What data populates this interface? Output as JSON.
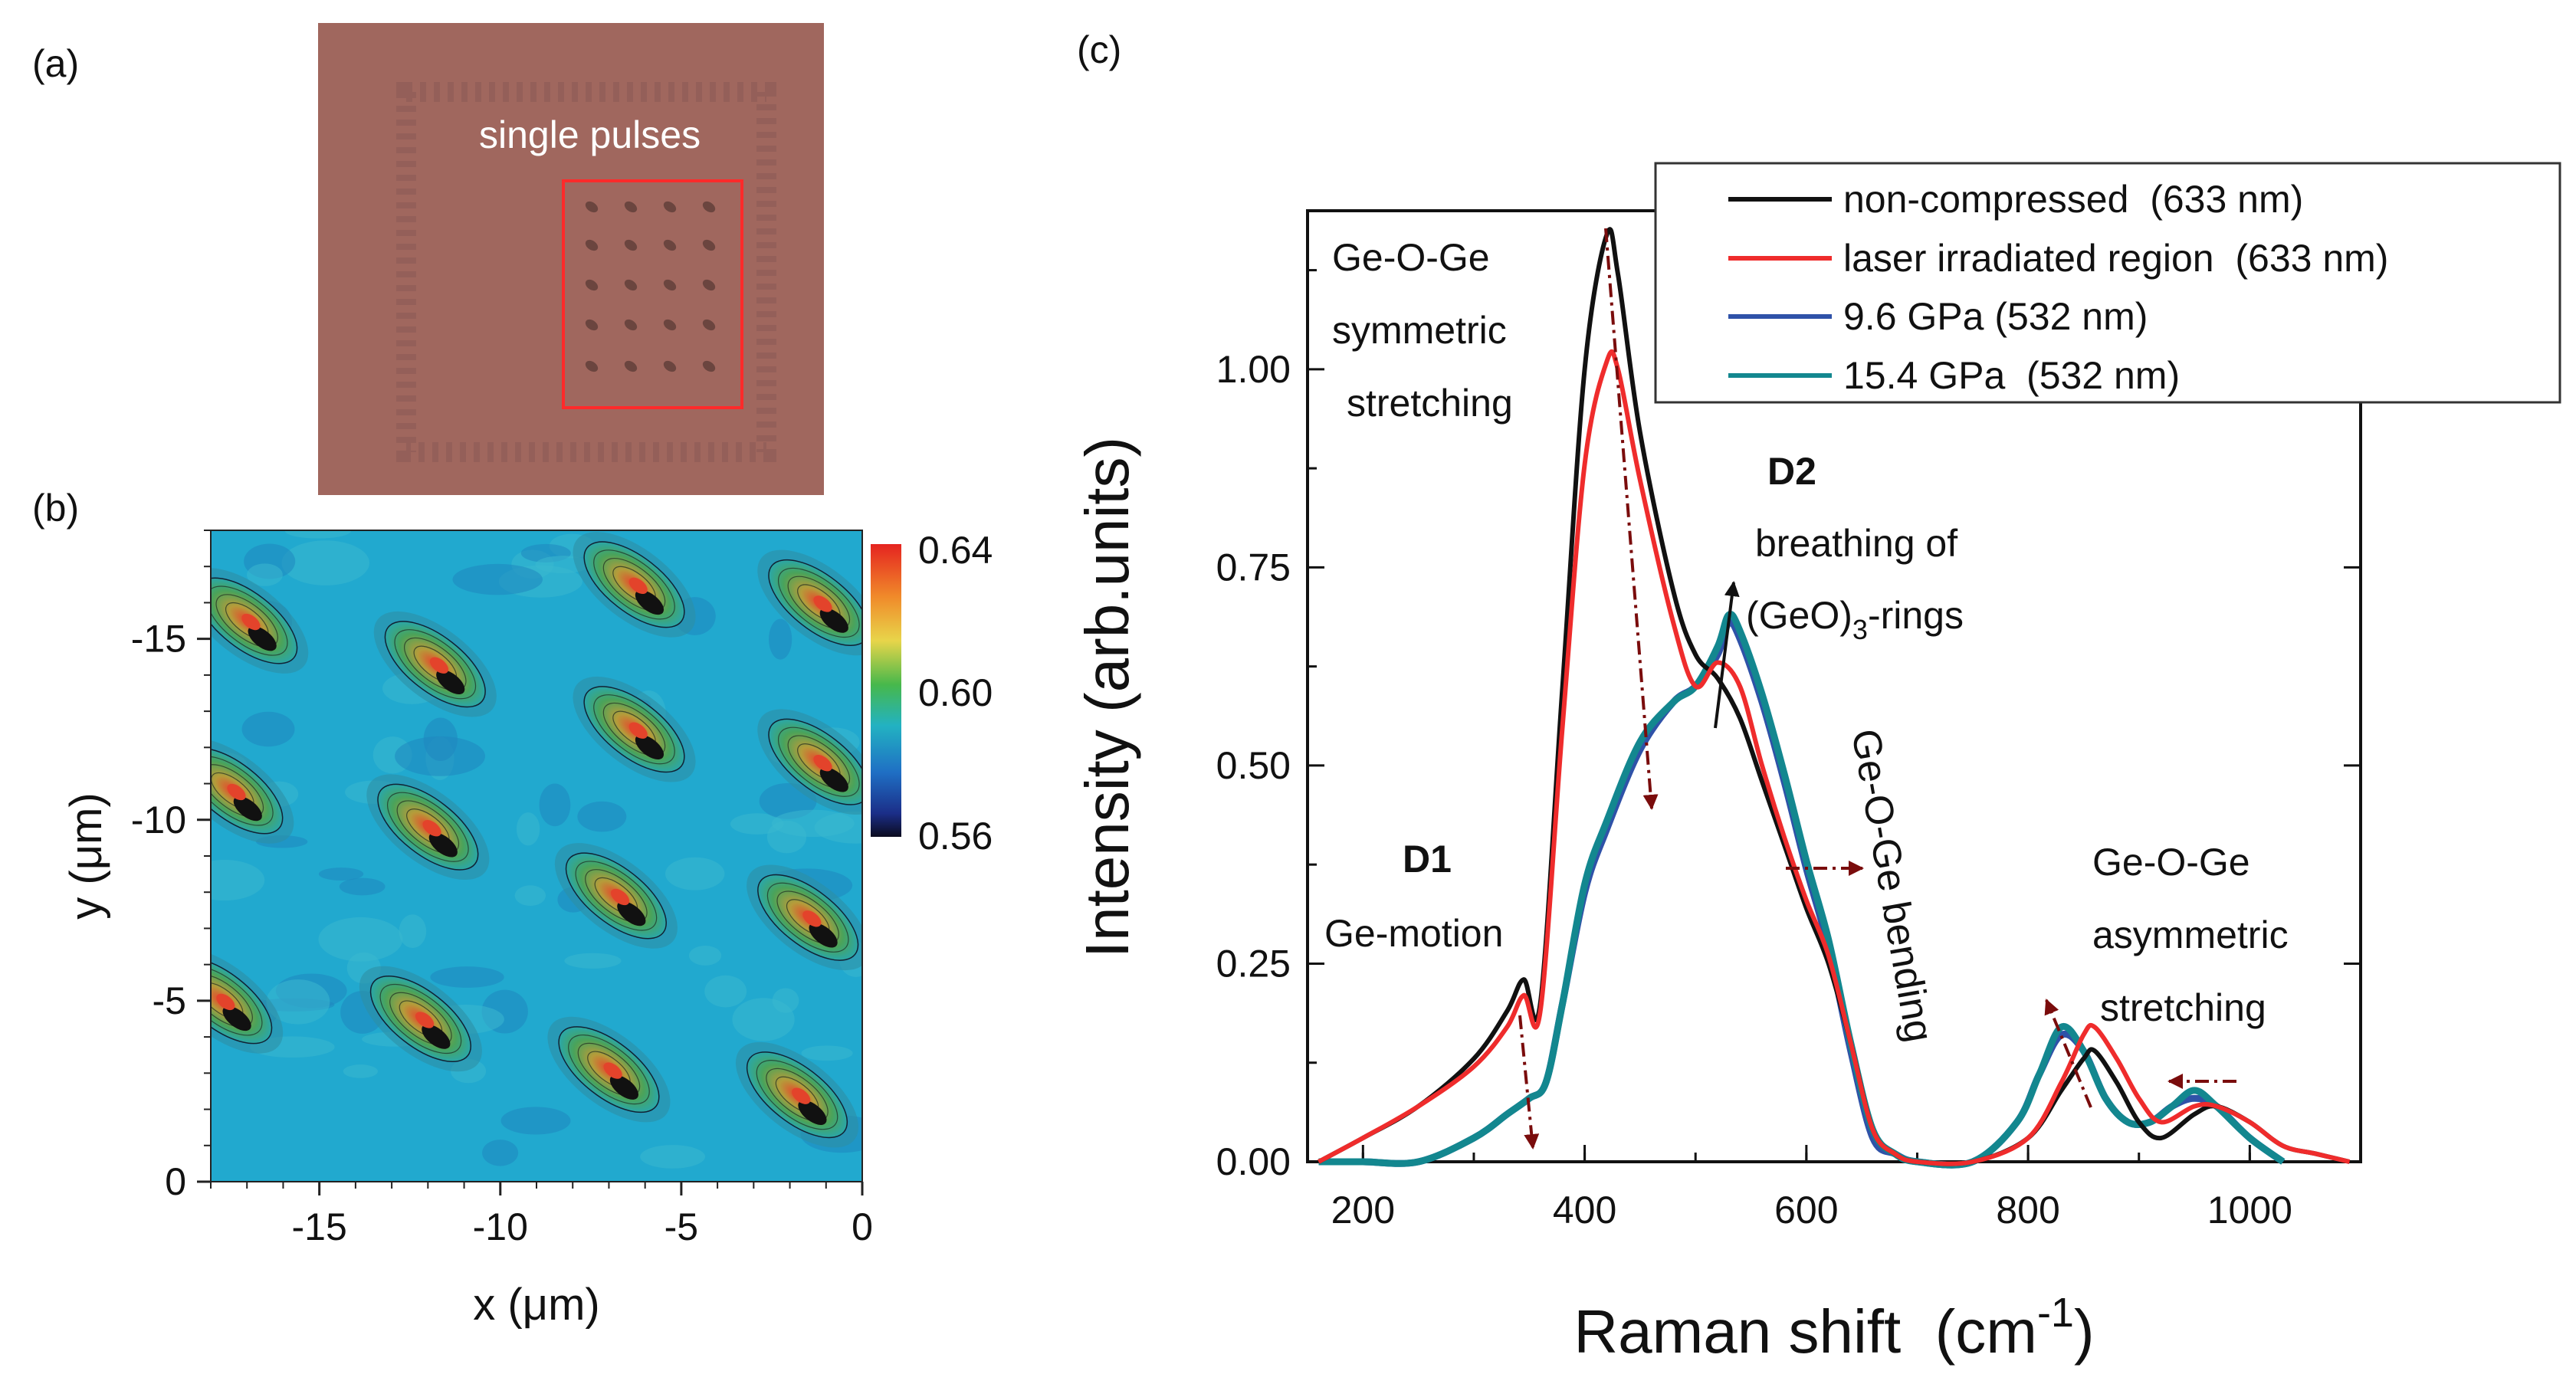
{
  "colors": {
    "non_compressed": "#111111",
    "laser": "#ef2c2c",
    "p96": "#2f52a8",
    "p154": "#13878f",
    "arrow_dark": "#7a0c0c",
    "photo_bg": "#a0675e",
    "roi_box": "#ff2a2a",
    "map_bg": "#21a9cf"
  },
  "panel_a": {
    "label": "(a)",
    "roi_label": "single pulses"
  },
  "panel_b": {
    "label": "(b)",
    "xlabel": "x (μm)",
    "ylabel": "y (μm)",
    "x_ticks": [
      "-15",
      "-10",
      "-5",
      "0"
    ],
    "y_ticks": [
      "-15",
      "-10",
      "-5",
      "0"
    ],
    "colorbar_ticks": [
      "0.64",
      "0.60",
      "0.56"
    ],
    "colorbar_range": [
      0.56,
      0.64
    ],
    "xlim": [
      -18,
      0
    ],
    "ylim": [
      0,
      -18
    ],
    "spot_centers_um": [
      [
        -17.0,
        -15.5
      ],
      [
        -6.3,
        -16.5
      ],
      [
        -1.2,
        -16.0
      ],
      [
        -11.8,
        -14.3
      ],
      [
        -6.3,
        -12.5
      ],
      [
        -1.2,
        -11.6
      ],
      [
        -17.4,
        -10.8
      ],
      [
        -12.0,
        -9.8
      ],
      [
        -6.8,
        -7.9
      ],
      [
        -1.5,
        -7.3
      ],
      [
        -17.7,
        -5.0
      ],
      [
        -12.2,
        -4.5
      ],
      [
        -7.0,
        -3.1
      ],
      [
        -1.8,
        -2.4
      ]
    ]
  },
  "chart_data": {
    "type": "line",
    "label": "(c)",
    "xlabel": "Raman shift  (cm",
    "xlabel_sup": "-1",
    "xlabel_end": ")",
    "ylabel": "Intensity (arb.units)",
    "xlim": [
      150,
      1100
    ],
    "ylim": [
      0,
      1.2
    ],
    "x_ticks": [
      200,
      400,
      600,
      800,
      1000
    ],
    "y_ticks": [
      "0.00",
      "0.25",
      "0.50",
      "0.75",
      "1.00"
    ],
    "legend": {
      "placement": "top-right",
      "entries": [
        {
          "label": "non-compressed  (633 nm)",
          "series": "non_compressed"
        },
        {
          "label": "laser irradiated region  (633 nm)",
          "series": "laser"
        },
        {
          "label": "9.6 GPa (532 nm)",
          "series": "p96"
        },
        {
          "label": "15.4 GPa  (532 nm)",
          "series": "p154"
        }
      ]
    },
    "series": [
      {
        "name": "non_compressed",
        "x": [
          160,
          200,
          250,
          300,
          330,
          345,
          360,
          380,
          400,
          420,
          430,
          450,
          480,
          500,
          520,
          540,
          560,
          580,
          600,
          620,
          640,
          660,
          680,
          700,
          750,
          800,
          830,
          850,
          860,
          880,
          900,
          920,
          950,
          970,
          1000,
          1030,
          1060,
          1090
        ],
        "y": [
          0.0,
          0.03,
          0.07,
          0.13,
          0.19,
          0.23,
          0.2,
          0.6,
          1.0,
          1.17,
          1.12,
          0.92,
          0.72,
          0.64,
          0.61,
          0.56,
          0.48,
          0.4,
          0.32,
          0.25,
          0.15,
          0.04,
          0.01,
          0.0,
          0.0,
          0.03,
          0.09,
          0.13,
          0.14,
          0.1,
          0.05,
          0.03,
          0.06,
          0.07,
          0.05,
          0.02,
          0.01,
          0.0
        ]
      },
      {
        "name": "laser",
        "x": [
          160,
          200,
          250,
          300,
          330,
          345,
          360,
          380,
          400,
          420,
          430,
          450,
          480,
          500,
          520,
          540,
          560,
          580,
          600,
          620,
          640,
          660,
          680,
          700,
          750,
          800,
          830,
          850,
          860,
          880,
          900,
          920,
          950,
          970,
          1000,
          1030,
          1060,
          1090
        ],
        "y": [
          0.0,
          0.03,
          0.07,
          0.12,
          0.17,
          0.21,
          0.19,
          0.55,
          0.88,
          1.01,
          1.0,
          0.86,
          0.68,
          0.6,
          0.63,
          0.6,
          0.5,
          0.41,
          0.33,
          0.26,
          0.15,
          0.04,
          0.01,
          0.0,
          0.0,
          0.03,
          0.1,
          0.16,
          0.17,
          0.13,
          0.08,
          0.05,
          0.07,
          0.07,
          0.05,
          0.02,
          0.01,
          0.0
        ]
      },
      {
        "name": "p96",
        "x": [
          160,
          200,
          250,
          300,
          330,
          350,
          365,
          380,
          400,
          420,
          450,
          480,
          500,
          520,
          530,
          540,
          560,
          580,
          600,
          620,
          640,
          660,
          680,
          700,
          750,
          790,
          810,
          830,
          850,
          870,
          890,
          910,
          930,
          950,
          970,
          1000,
          1030
        ],
        "y": [
          0.0,
          0.0,
          0.0,
          0.03,
          0.06,
          0.08,
          0.1,
          0.2,
          0.34,
          0.42,
          0.52,
          0.58,
          0.6,
          0.64,
          0.68,
          0.66,
          0.58,
          0.48,
          0.37,
          0.27,
          0.14,
          0.03,
          0.01,
          0.0,
          0.0,
          0.05,
          0.11,
          0.16,
          0.14,
          0.08,
          0.05,
          0.05,
          0.07,
          0.08,
          0.07,
          0.03,
          0.0
        ]
      },
      {
        "name": "p154",
        "x": [
          160,
          200,
          250,
          300,
          330,
          350,
          365,
          380,
          400,
          420,
          450,
          480,
          500,
          520,
          530,
          540,
          560,
          580,
          600,
          620,
          640,
          660,
          680,
          700,
          750,
          790,
          810,
          830,
          850,
          870,
          890,
          910,
          930,
          950,
          970,
          1000,
          1030
        ],
        "y": [
          0.0,
          0.0,
          0.0,
          0.03,
          0.06,
          0.08,
          0.1,
          0.2,
          0.35,
          0.43,
          0.53,
          0.58,
          0.6,
          0.65,
          0.69,
          0.67,
          0.59,
          0.49,
          0.38,
          0.28,
          0.15,
          0.04,
          0.01,
          0.0,
          0.0,
          0.05,
          0.11,
          0.17,
          0.14,
          0.08,
          0.05,
          0.05,
          0.07,
          0.09,
          0.07,
          0.03,
          0.0
        ]
      }
    ],
    "annotations": {
      "sym": [
        "Ge-O-Ge",
        "symmetric",
        "stretching"
      ],
      "d1_bold": "D1",
      "d1_text": "Ge-motion",
      "d2_bold": "D2",
      "d2_line1": "breathing of",
      "d2_line2_pre": "(GeO)",
      "d2_line2_sub": "3",
      "d2_line2_post": "-rings",
      "bending": "Ge-O-Ge bending",
      "asym": [
        "Ge-O-Ge",
        "asymmetric",
        "stretching"
      ]
    }
  }
}
